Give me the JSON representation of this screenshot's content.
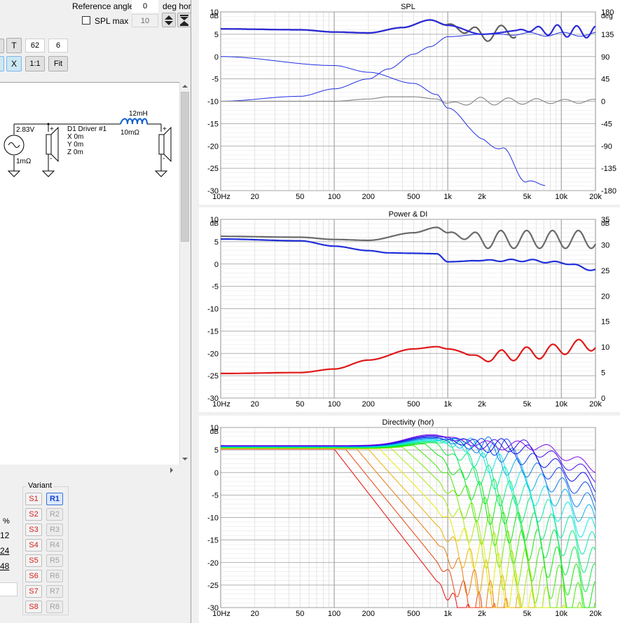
{
  "top": {
    "reference_angle_label": "Reference angle",
    "reference_angle_value": "0",
    "deg_hor_label": "deg hor",
    "spl_max_label": "SPL max",
    "spl_max_value": "10"
  },
  "toolbar": {
    "t_label": "T",
    "value1": "62",
    "value2": "6",
    "x_label": "X",
    "one_to_one_label": "1:1",
    "fit_label": "Fit"
  },
  "schematic": {
    "source_voltage": "2.83V",
    "source_resistance": "1mΩ",
    "driver_name": "D1 Driver #1",
    "driver_x": "X 0m",
    "driver_y": "Y 0m",
    "driver_z": "Z 0m",
    "inductor_value": "12mH",
    "inductor_resistance": "10mΩ"
  },
  "left_bottom": {
    "percent_label": "%",
    "val_12": "12",
    "val_24": "24",
    "val_48": "48"
  },
  "variant": {
    "title": "Variant",
    "s_buttons": [
      "S1",
      "S2",
      "S3",
      "S4",
      "S5",
      "S6",
      "S7",
      "S8"
    ],
    "r_buttons": [
      "R1",
      "R2",
      "R3",
      "R4",
      "R5",
      "R6",
      "R7",
      "R8"
    ],
    "selected": "R1"
  },
  "colors": {
    "grey_curve": "#6a6a6a",
    "blue_curve": "#1f2fd8",
    "red_curve": "#e01818",
    "phase_curve": "#3040e0"
  },
  "chart_data": [
    {
      "type": "line",
      "title": "SPL",
      "ylabel": "dB",
      "y2label": "deg",
      "xscale": "log",
      "xlim": [
        10,
        20000
      ],
      "ylim": [
        -30,
        10
      ],
      "y2lim": [
        -180,
        180
      ],
      "xticks": [
        "10Hz",
        "20",
        "50",
        "100",
        "200",
        "500",
        "1k",
        "2k",
        "5k",
        "10k",
        "20k"
      ],
      "yticks": [
        "10",
        "5",
        "0",
        "-5",
        "-10",
        "-15",
        "-20",
        "-25",
        "-30"
      ],
      "y2ticks": [
        "180",
        "135",
        "90",
        "45",
        "0",
        "-45",
        "-90",
        "-135",
        "-180"
      ],
      "grid": true,
      "series": [
        {
          "x": [
            10,
            50,
            100,
            200,
            400,
            700,
            1000,
            2000,
            5000,
            20000
          ],
          "y": [
            6.2,
            6.0,
            5.5,
            5.3,
            6.5,
            8.2,
            7.0,
            5.0,
            6.0,
            5.5
          ]
        },
        {
          "x": [
            10,
            100,
            200,
            500,
            800,
            1000,
            2000,
            3000,
            5000,
            7000
          ],
          "y": [
            0,
            -2,
            -3.5,
            -6,
            -8.5,
            -11.5,
            -18,
            -21.5,
            -27,
            -30
          ]
        },
        {
          "x": [
            10,
            50,
            100,
            200,
            300,
            500,
            700,
            1000,
            2000,
            20000
          ],
          "y": [
            0,
            10,
            25,
            45,
            65,
            95,
            110,
            130,
            135,
            135
          ]
        },
        {
          "x": [
            10,
            100,
            200,
            300,
            500,
            800,
            1000,
            2000,
            20000
          ],
          "y": [
            -10,
            -10,
            -9.5,
            -9,
            -9,
            -9.5,
            -10.5,
            -10,
            -10
          ]
        }
      ]
    },
    {
      "type": "line",
      "title": "Power & DI",
      "ylabel": "dB",
      "y2label": "dB",
      "xscale": "log",
      "xlim": [
        10,
        20000
      ],
      "ylim": [
        -30,
        10
      ],
      "y2lim": [
        0,
        35
      ],
      "xticks": [
        "10Hz",
        "20",
        "50",
        "100",
        "200",
        "500",
        "1k",
        "2k",
        "5k",
        "10k",
        "20k"
      ],
      "yticks": [
        "10",
        "5",
        "0",
        "-5",
        "-10",
        "-15",
        "-20",
        "-25",
        "-30"
      ],
      "y2ticks": [
        "35",
        "30",
        "25",
        "20",
        "15",
        "10",
        "5",
        "0"
      ],
      "grid": true,
      "series": [
        {
          "x": [
            10,
            50,
            100,
            200,
            500,
            800,
            1000,
            2000,
            20000
          ],
          "y": [
            6.2,
            6.0,
            5.5,
            5.3,
            7.0,
            8.2,
            7.0,
            5.5,
            5.5
          ]
        },
        {
          "x": [
            10,
            50,
            100,
            200,
            300,
            500,
            800,
            1000,
            2000,
            5000,
            10000,
            20000
          ],
          "y": [
            5.6,
            5.2,
            4.0,
            3.0,
            2.5,
            2.4,
            2.3,
            0.5,
            0.8,
            0.8,
            0.3,
            -1.3
          ]
        },
        {
          "x": [
            10,
            50,
            100,
            200,
            500,
            800,
            1000,
            2000,
            5000,
            20000
          ],
          "y": [
            -24.5,
            -24.3,
            -23.5,
            -21.5,
            -19,
            -18.5,
            -19,
            -21,
            -20,
            -18
          ]
        }
      ]
    },
    {
      "type": "line",
      "title": "Directivity (hor)",
      "ylabel": "dB",
      "xscale": "log",
      "xlim": [
        10,
        20000
      ],
      "ylim": [
        -30,
        10
      ],
      "xticks": [
        "10Hz",
        "20",
        "50",
        "100",
        "200",
        "500",
        "1k",
        "2k",
        "5k",
        "10k",
        "20k"
      ],
      "yticks": [
        "10",
        "5",
        "0",
        "-5",
        "-10",
        "-15",
        "-20",
        "-25",
        "-30"
      ],
      "grid": true,
      "series_count": 19,
      "series_description_angles": [
        0,
        10,
        20,
        30,
        40,
        50,
        60,
        70,
        80,
        90,
        100,
        110,
        120,
        130,
        140,
        150,
        160,
        170,
        180
      ]
    }
  ]
}
